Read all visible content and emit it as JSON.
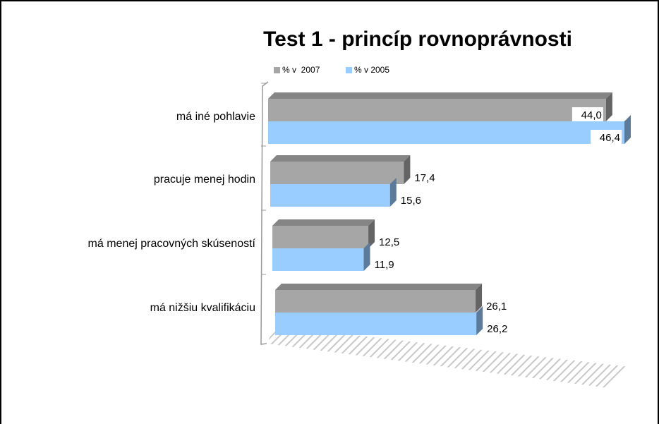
{
  "chart_data": {
    "type": "bar",
    "orientation": "horizontal",
    "title": "Test 1 - princíp rovnoprávnosti",
    "categories": [
      "má iné pohlavie",
      "pracuje menej hodin",
      "má menej pracovných skúseností",
      "má nižšiu kvalifikáciu"
    ],
    "series": [
      {
        "name": "% v  2007",
        "color": "#a6a6a6",
        "values": [
          44.0,
          17.4,
          12.5,
          26.1
        ],
        "value_labels": [
          "44,0",
          "17,4",
          "12,5",
          "26,1"
        ]
      },
      {
        "name": "% v 2005",
        "color": "#99ccff",
        "values": [
          46.4,
          15.6,
          11.9,
          26.2
        ],
        "value_labels": [
          "46,4",
          "15,6",
          "11,9",
          "26,2"
        ]
      }
    ]
  }
}
